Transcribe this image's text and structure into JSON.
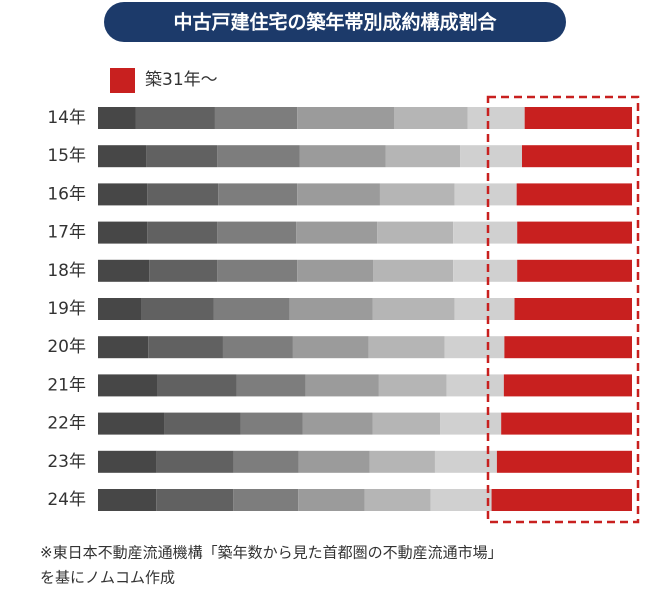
{
  "chart_data": {
    "type": "stacked_barh",
    "title": "中古戸建住宅の築年帯別成約構成割合",
    "categories": [
      "14年",
      "15年",
      "16年",
      "17年",
      "18年",
      "19年",
      "20年",
      "21年",
      "22年",
      "23年",
      "24年"
    ],
    "xlim": [
      0,
      100
    ],
    "series": [
      {
        "color": "#474747",
        "values": [
          7.1,
          9.0,
          9.2,
          9.2,
          9.6,
          8.2,
          9.4,
          11.2,
          12.5,
          11.0,
          10.9
        ]
      },
      {
        "color": "#616161",
        "values": [
          14.8,
          13.3,
          13.3,
          13.1,
          12.7,
          13.5,
          14.0,
          14.8,
          14.2,
          14.4,
          14.4
        ]
      },
      {
        "color": "#7d7d7d",
        "values": [
          15.4,
          15.5,
          14.8,
          14.8,
          15.0,
          14.2,
          13.1,
          12.9,
          11.6,
          12.2,
          12.2
        ]
      },
      {
        "color": "#9b9b9b",
        "values": [
          18.2,
          16.1,
          15.5,
          15.2,
          14.2,
          15.5,
          14.2,
          13.7,
          13.1,
          13.3,
          12.4
        ]
      },
      {
        "color": "#b5b5b5",
        "values": [
          13.7,
          13.9,
          14.0,
          14.2,
          15.0,
          15.4,
          14.2,
          12.7,
          12.7,
          12.2,
          12.4
        ]
      },
      {
        "color": "#d0d0d0",
        "values": [
          10.7,
          11.6,
          11.6,
          12.0,
          12.0,
          11.2,
          11.2,
          10.7,
          11.4,
          11.6,
          11.4
        ]
      },
      {
        "name": "築31年～",
        "color": "#c8201f",
        "values": [
          20.1,
          20.6,
          21.6,
          21.5,
          21.5,
          22.0,
          23.9,
          24.0,
          24.5,
          25.3,
          26.3
        ]
      }
    ],
    "source": [
      "※東日本不動産流通機構「築年数から見た首都圏の不動産流通市場」",
      "を基にノムコム作成"
    ]
  }
}
